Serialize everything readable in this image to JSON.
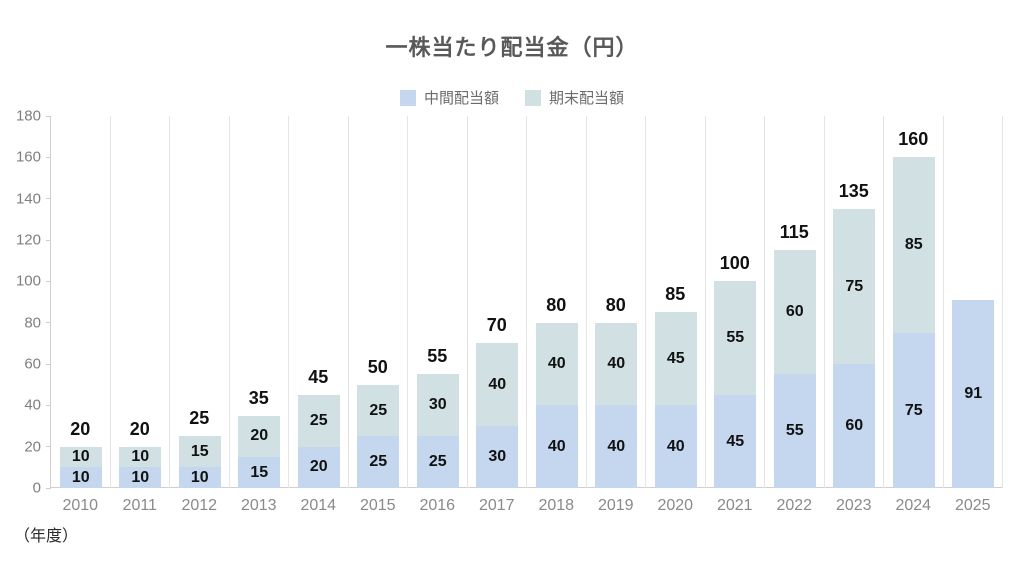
{
  "title": "一株当たり配当金（円）",
  "legend": [
    {
      "label": "中間配当額",
      "color": "#c4d7ee"
    },
    {
      "label": "期末配当額",
      "color": "#d0e0e3"
    }
  ],
  "x_axis_unit": "（年度）",
  "colors": {
    "interim_bar": "#c4d7ee",
    "yearend_bar": "#d0e0e3",
    "gridline": "#e4e4e4",
    "axis_line": "#cfcfcf",
    "tick_text": "#7f7f7f",
    "value_text": "#111111",
    "title_text": "#595959"
  },
  "chart_data": {
    "type": "bar",
    "stacked": true,
    "title": "一株当たり配当金（円）",
    "xlabel": "（年度）",
    "ylabel": "",
    "ylim": [
      0,
      180
    ],
    "yticks": [
      0,
      20,
      40,
      60,
      80,
      100,
      120,
      140,
      160,
      180
    ],
    "grid": "vertical-only",
    "legend_position": "top",
    "categories": [
      "2010",
      "2011",
      "2012",
      "2013",
      "2014",
      "2015",
      "2016",
      "2017",
      "2018",
      "2019",
      "2020",
      "2021",
      "2022",
      "2023",
      "2024",
      "2025"
    ],
    "series": [
      {
        "name": "中間配当額",
        "color": "#c4d7ee",
        "values": [
          10,
          10,
          10,
          15,
          20,
          25,
          25,
          30,
          40,
          40,
          40,
          45,
          55,
          60,
          75,
          91
        ]
      },
      {
        "name": "期末配当額",
        "color": "#d0e0e3",
        "values": [
          10,
          10,
          15,
          20,
          25,
          25,
          30,
          40,
          40,
          40,
          45,
          55,
          60,
          75,
          85,
          null
        ]
      }
    ],
    "totals": [
      20,
      20,
      25,
      35,
      45,
      50,
      55,
      70,
      80,
      80,
      85,
      100,
      115,
      135,
      160,
      null
    ],
    "total_labels": [
      "20",
      "20",
      "25",
      "35",
      "45",
      "50",
      "55",
      "70",
      "80",
      "80",
      "85",
      "100",
      "115",
      "135",
      "160",
      ""
    ]
  }
}
